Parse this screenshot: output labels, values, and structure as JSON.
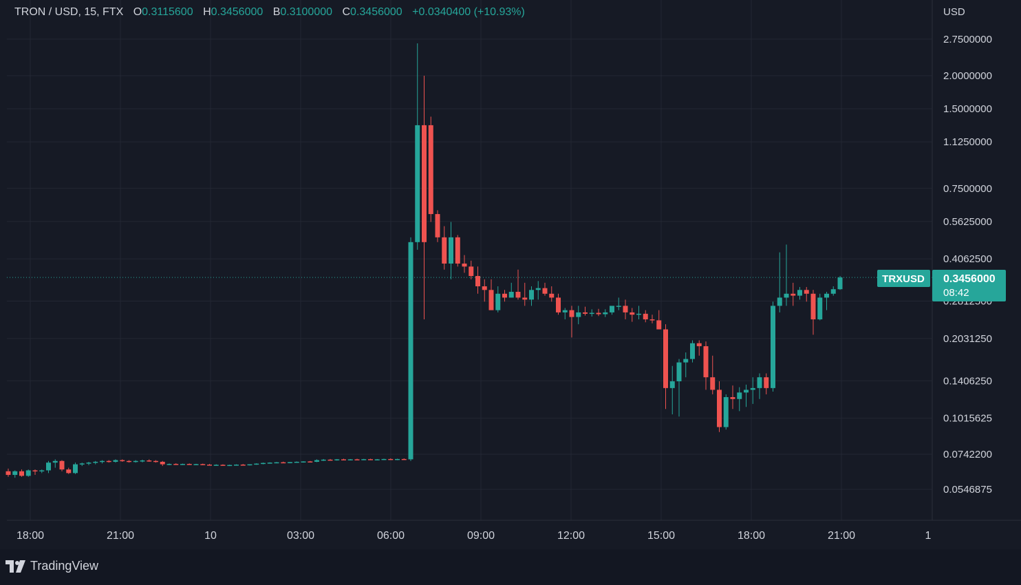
{
  "legend": {
    "symbol": "TRON / USD, 15, FTX",
    "open_label": "O",
    "open": "0.3115600",
    "high_label": "H",
    "high": "0.3456000",
    "low_label": "B",
    "low": "0.3100000",
    "close_label": "C",
    "close": "0.3456000",
    "change": "+0.0340400 (+10.93%)"
  },
  "price_axis": {
    "currency": "USD",
    "ticks": [
      "2.7500000",
      "2.0000000",
      "1.5000000",
      "1.1250000",
      "0.7500000",
      "0.5625000",
      "0.4062500",
      "0.2812500",
      "0.2031250",
      "0.1406250",
      "0.1015625",
      "0.0742200",
      "0.0546875"
    ]
  },
  "time_axis": {
    "ticks": [
      "18:00",
      "21:00",
      "10",
      "03:00",
      "06:00",
      "09:00",
      "12:00",
      "15:00",
      "18:00",
      "21:00",
      "1"
    ]
  },
  "last_price": {
    "symbol_tag": "TRXUSD",
    "price": "0.3456000",
    "countdown": "08:42"
  },
  "brand": {
    "name": "TradingView"
  },
  "colors": {
    "up": "#26a69a",
    "down": "#ef5350",
    "background": "#161a25",
    "grid": "#232733",
    "text": "#d1d4dc"
  },
  "chart_data": {
    "type": "candlestick",
    "symbol": "TRON / USD",
    "interval": "15",
    "exchange": "FTX",
    "y_scale": "log",
    "ylabel": "USD",
    "ylim": [
      0.048,
      3.3
    ],
    "grid": true,
    "last_price": 0.3456,
    "candles": [
      [
        0.064,
        0.0655,
        0.061,
        0.062
      ],
      [
        0.062,
        0.0645,
        0.0605,
        0.064
      ],
      [
        0.064,
        0.065,
        0.061,
        0.0615
      ],
      [
        0.0615,
        0.065,
        0.061,
        0.0645
      ],
      [
        0.0645,
        0.065,
        0.062,
        0.064
      ],
      [
        0.064,
        0.065,
        0.063,
        0.0645
      ],
      [
        0.0645,
        0.07,
        0.063,
        0.069
      ],
      [
        0.069,
        0.071,
        0.066,
        0.07
      ],
      [
        0.07,
        0.0705,
        0.064,
        0.065
      ],
      [
        0.065,
        0.066,
        0.0625,
        0.063
      ],
      [
        0.063,
        0.069,
        0.0625,
        0.068
      ],
      [
        0.068,
        0.069,
        0.067,
        0.0685
      ],
      [
        0.0685,
        0.0695,
        0.0675,
        0.069
      ],
      [
        0.069,
        0.07,
        0.068,
        0.0695
      ],
      [
        0.0695,
        0.0705,
        0.0685,
        0.07
      ],
      [
        0.07,
        0.0705,
        0.069,
        0.0695
      ],
      [
        0.0695,
        0.071,
        0.069,
        0.0705
      ],
      [
        0.0705,
        0.071,
        0.0695,
        0.07
      ],
      [
        0.07,
        0.0705,
        0.069,
        0.0697
      ],
      [
        0.0697,
        0.0705,
        0.069,
        0.07
      ],
      [
        0.07,
        0.0708,
        0.0692,
        0.0703
      ],
      [
        0.0703,
        0.071,
        0.0695,
        0.07
      ],
      [
        0.07,
        0.0705,
        0.069,
        0.0695
      ],
      [
        0.0695,
        0.07,
        0.067,
        0.068
      ],
      [
        0.068,
        0.0685,
        0.0675,
        0.0682
      ],
      [
        0.0682,
        0.0686,
        0.0677,
        0.068
      ],
      [
        0.068,
        0.0684,
        0.0676,
        0.0682
      ],
      [
        0.0682,
        0.0685,
        0.0677,
        0.068
      ],
      [
        0.068,
        0.0683,
        0.0676,
        0.0681
      ],
      [
        0.0681,
        0.0684,
        0.0676,
        0.0678
      ],
      [
        0.0678,
        0.0682,
        0.0674,
        0.0675
      ],
      [
        0.0675,
        0.068,
        0.0672,
        0.0677
      ],
      [
        0.0677,
        0.068,
        0.0672,
        0.0674
      ],
      [
        0.0674,
        0.0678,
        0.067,
        0.0676
      ],
      [
        0.0676,
        0.068,
        0.0672,
        0.0678
      ],
      [
        0.0678,
        0.0682,
        0.0675,
        0.0676
      ],
      [
        0.0676,
        0.068,
        0.0673,
        0.068
      ],
      [
        0.068,
        0.0686,
        0.0677,
        0.0684
      ],
      [
        0.0684,
        0.069,
        0.068,
        0.0688
      ],
      [
        0.0688,
        0.0692,
        0.0684,
        0.069
      ],
      [
        0.069,
        0.0694,
        0.0686,
        0.0692
      ],
      [
        0.0692,
        0.0696,
        0.0688,
        0.069
      ],
      [
        0.069,
        0.0694,
        0.0686,
        0.0693
      ],
      [
        0.0693,
        0.0697,
        0.0689,
        0.0695
      ],
      [
        0.0695,
        0.0698,
        0.069,
        0.0697
      ],
      [
        0.0697,
        0.07,
        0.0692,
        0.0695
      ],
      [
        0.0695,
        0.071,
        0.0693,
        0.0705
      ],
      [
        0.0705,
        0.0712,
        0.07,
        0.0708
      ],
      [
        0.0708,
        0.0712,
        0.0703,
        0.0706
      ],
      [
        0.0706,
        0.0712,
        0.0702,
        0.071
      ],
      [
        0.071,
        0.0714,
        0.0705,
        0.0708
      ],
      [
        0.0708,
        0.0712,
        0.0704,
        0.071
      ],
      [
        0.071,
        0.0714,
        0.0706,
        0.0709
      ],
      [
        0.0709,
        0.0713,
        0.0705,
        0.0711
      ],
      [
        0.0711,
        0.0714,
        0.0706,
        0.0708
      ],
      [
        0.0708,
        0.0712,
        0.0704,
        0.071
      ],
      [
        0.071,
        0.0714,
        0.0706,
        0.0712
      ],
      [
        0.0712,
        0.0716,
        0.0708,
        0.071
      ],
      [
        0.071,
        0.0714,
        0.0705,
        0.0712
      ],
      [
        0.0712,
        0.0716,
        0.0708,
        0.071
      ],
      [
        0.071,
        0.49,
        0.07,
        0.47
      ],
      [
        0.47,
        2.65,
        0.44,
        1.3
      ],
      [
        1.3,
        2.0,
        0.24,
        0.47
      ],
      [
        1.3,
        1.4,
        0.56,
        0.6
      ],
      [
        0.6,
        0.62,
        0.47,
        0.49
      ],
      [
        0.49,
        0.54,
        0.37,
        0.39
      ],
      [
        0.39,
        0.56,
        0.34,
        0.49
      ],
      [
        0.49,
        0.5,
        0.38,
        0.39
      ],
      [
        0.39,
        0.42,
        0.36,
        0.38
      ],
      [
        0.38,
        0.4,
        0.34,
        0.35
      ],
      [
        0.35,
        0.38,
        0.3,
        0.32
      ],
      [
        0.32,
        0.34,
        0.28,
        0.31
      ],
      [
        0.31,
        0.34,
        0.27,
        0.26
      ],
      [
        0.26,
        0.32,
        0.255,
        0.3
      ],
      [
        0.3,
        0.31,
        0.28,
        0.29
      ],
      [
        0.29,
        0.33,
        0.29,
        0.305
      ],
      [
        0.305,
        0.37,
        0.285,
        0.29
      ],
      [
        0.29,
        0.33,
        0.27,
        0.285
      ],
      [
        0.285,
        0.32,
        0.27,
        0.31
      ],
      [
        0.31,
        0.335,
        0.285,
        0.315
      ],
      [
        0.315,
        0.33,
        0.295,
        0.3
      ],
      [
        0.3,
        0.32,
        0.28,
        0.29
      ],
      [
        0.29,
        0.3,
        0.25,
        0.255
      ],
      [
        0.255,
        0.265,
        0.24,
        0.26
      ],
      [
        0.26,
        0.27,
        0.205,
        0.245
      ],
      [
        0.245,
        0.27,
        0.23,
        0.255
      ],
      [
        0.255,
        0.268,
        0.248,
        0.252
      ],
      [
        0.252,
        0.262,
        0.246,
        0.254
      ],
      [
        0.254,
        0.263,
        0.247,
        0.251
      ],
      [
        0.251,
        0.262,
        0.245,
        0.255
      ],
      [
        0.255,
        0.268,
        0.25,
        0.27
      ],
      [
        0.27,
        0.29,
        0.26,
        0.27
      ],
      [
        0.27,
        0.285,
        0.24,
        0.255
      ],
      [
        0.255,
        0.265,
        0.235,
        0.25
      ],
      [
        0.25,
        0.27,
        0.24,
        0.252
      ],
      [
        0.252,
        0.26,
        0.234,
        0.24
      ],
      [
        0.24,
        0.25,
        0.232,
        0.238
      ],
      [
        0.238,
        0.26,
        0.225,
        0.22
      ],
      [
        0.22,
        0.23,
        0.11,
        0.132
      ],
      [
        0.132,
        0.16,
        0.105,
        0.14
      ],
      [
        0.14,
        0.17,
        0.103,
        0.165
      ],
      [
        0.165,
        0.18,
        0.145,
        0.17
      ],
      [
        0.17,
        0.2,
        0.165,
        0.195
      ],
      [
        0.195,
        0.2,
        0.175,
        0.19
      ],
      [
        0.19,
        0.198,
        0.13,
        0.145
      ],
      [
        0.145,
        0.175,
        0.125,
        0.13
      ],
      [
        0.13,
        0.14,
        0.09,
        0.094
      ],
      [
        0.094,
        0.125,
        0.092,
        0.122
      ],
      [
        0.122,
        0.135,
        0.11,
        0.12
      ],
      [
        0.12,
        0.133,
        0.108,
        0.127
      ],
      [
        0.127,
        0.136,
        0.112,
        0.13
      ],
      [
        0.13,
        0.145,
        0.115,
        0.132
      ],
      [
        0.132,
        0.15,
        0.12,
        0.145
      ],
      [
        0.145,
        0.15,
        0.125,
        0.132
      ],
      [
        0.132,
        0.28,
        0.128,
        0.27
      ],
      [
        0.27,
        0.43,
        0.255,
        0.29
      ],
      [
        0.29,
        0.46,
        0.27,
        0.3
      ],
      [
        0.3,
        0.33,
        0.27,
        0.295
      ],
      [
        0.295,
        0.318,
        0.285,
        0.31
      ],
      [
        0.31,
        0.318,
        0.28,
        0.3
      ],
      [
        0.3,
        0.31,
        0.21,
        0.24
      ],
      [
        0.24,
        0.3,
        0.238,
        0.29
      ],
      [
        0.29,
        0.305,
        0.26,
        0.3
      ],
      [
        0.3,
        0.32,
        0.295,
        0.312
      ],
      [
        0.312,
        0.35,
        0.31,
        0.3456
      ]
    ]
  }
}
